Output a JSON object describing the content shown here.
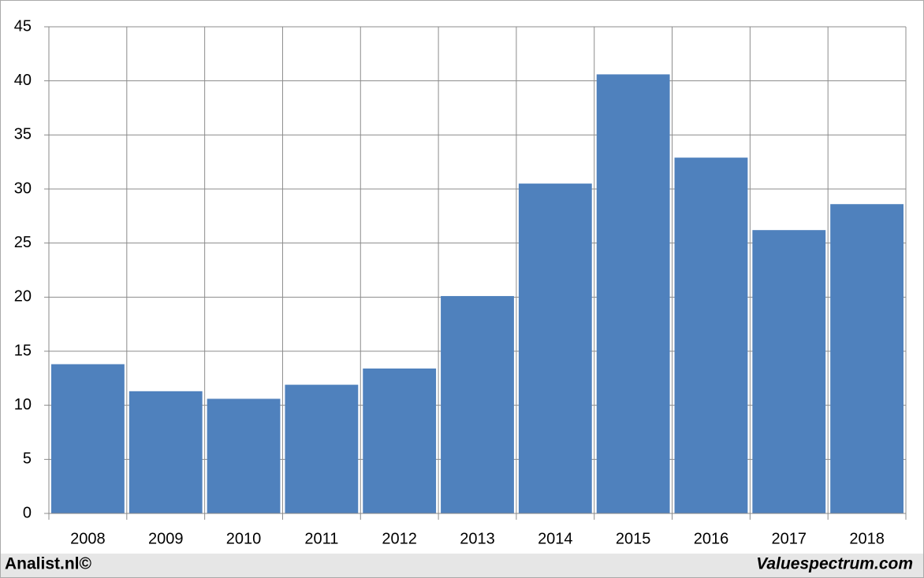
{
  "chart_data": {
    "type": "bar",
    "categories": [
      "2008",
      "2009",
      "2010",
      "2011",
      "2012",
      "2013",
      "2014",
      "2015",
      "2016",
      "2017",
      "2018"
    ],
    "values": [
      13.8,
      11.3,
      10.6,
      11.9,
      13.4,
      20.1,
      30.5,
      40.6,
      32.9,
      26.2,
      28.6
    ],
    "color": "#4f81bd",
    "ylim": [
      0,
      45
    ],
    "yticks": [
      0,
      5,
      10,
      15,
      20,
      25,
      30,
      35,
      40,
      45
    ],
    "grid": true
  },
  "footer": {
    "left": "Analist.nl©",
    "right": "Valuespectrum.com"
  }
}
